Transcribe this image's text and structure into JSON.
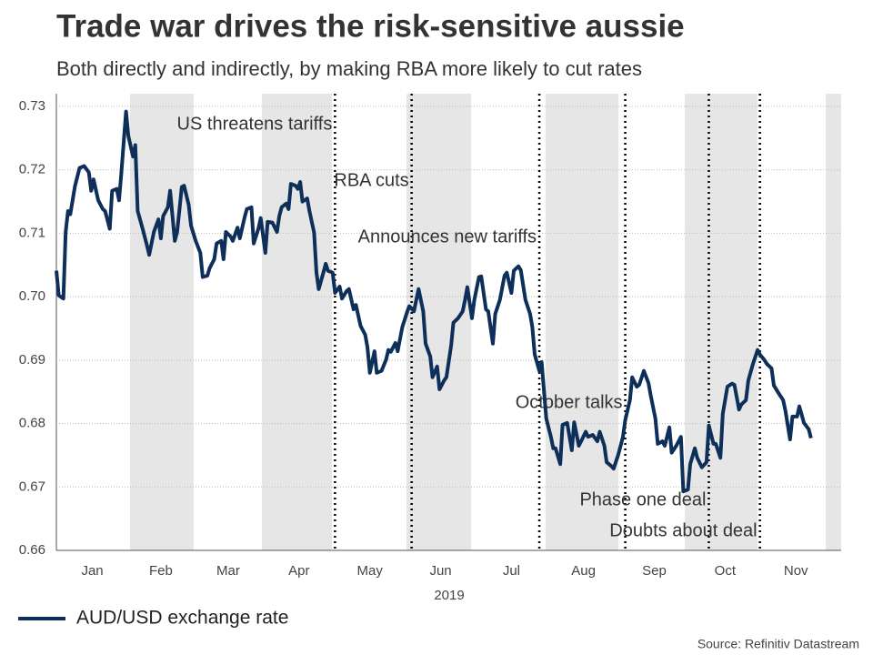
{
  "chart_data": {
    "type": "line",
    "title": "Trade war drives the risk-sensitive aussie",
    "subtitle": "Both directly and indirectly, by making RBA more likely to cut rates",
    "xlabel": "2019",
    "source": "Source: Refinitiv Datastream",
    "xlim": [
      0,
      338
    ],
    "xticks": [
      {
        "value": 15.5,
        "label": "Jan"
      },
      {
        "value": 45,
        "label": "Feb"
      },
      {
        "value": 74,
        "label": "Mar"
      },
      {
        "value": 104.5,
        "label": "Apr"
      },
      {
        "value": 135,
        "label": "May"
      },
      {
        "value": 165.5,
        "label": "Jun"
      },
      {
        "value": 196,
        "label": "Jul"
      },
      {
        "value": 227,
        "label": "Aug"
      },
      {
        "value": 257.5,
        "label": "Sep"
      },
      {
        "value": 288,
        "label": "Oct"
      },
      {
        "value": 318.5,
        "label": "Nov"
      }
    ],
    "ylim": [
      0.66,
      0.73
    ],
    "yticks": [
      {
        "value": 0.66,
        "label": "0.66"
      },
      {
        "value": 0.67,
        "label": "0.67"
      },
      {
        "value": 0.68,
        "label": "0.68"
      },
      {
        "value": 0.69,
        "label": "0.69"
      },
      {
        "value": 0.7,
        "label": "0.70"
      },
      {
        "value": 0.71,
        "label": "0.71"
      },
      {
        "value": 0.72,
        "label": "0.72"
      },
      {
        "value": 0.73,
        "label": "0.73"
      }
    ],
    "grid": true,
    "events": [
      {
        "x": 120,
        "label": "US threatens tariffs"
      },
      {
        "x": 153,
        "label": "RBA cuts"
      },
      {
        "x": 208,
        "label": "Announces new tariffs"
      },
      {
        "x": 245,
        "label": "October talks"
      },
      {
        "x": 281,
        "label": "Phase one deal"
      },
      {
        "x": 303,
        "label": "Doubts about deal"
      }
    ],
    "x": [
      0,
      1,
      3,
      4,
      5,
      6,
      8,
      10,
      12,
      14,
      15,
      16,
      18,
      20,
      21,
      23,
      24,
      26,
      27,
      28,
      30,
      31,
      33,
      34,
      35,
      37,
      39,
      40,
      42,
      44,
      45,
      46,
      48,
      49,
      51,
      52,
      54,
      55,
      57,
      58,
      60,
      62,
      63,
      65,
      66,
      68,
      69,
      71,
      72,
      73,
      75,
      76,
      78,
      79,
      81,
      82,
      84,
      85,
      87,
      88,
      90,
      91,
      93,
      95,
      96,
      97,
      99,
      100,
      101,
      103,
      104,
      105,
      106,
      108,
      109,
      111,
      112,
      113,
      115,
      116,
      117,
      119,
      120,
      122,
      123,
      125,
      126,
      128,
      129,
      131,
      133,
      134,
      135,
      137,
      138,
      140,
      142,
      143,
      144,
      146,
      147,
      149,
      151,
      152,
      154,
      155,
      156,
      158,
      159,
      161,
      162,
      164,
      165,
      167,
      168,
      170,
      171,
      173,
      175,
      176,
      177,
      179,
      180,
      182,
      183,
      185,
      186,
      188,
      189,
      191,
      193,
      194,
      196,
      197,
      199,
      200,
      202,
      204,
      205,
      206,
      208,
      209,
      211,
      213,
      214,
      215,
      217,
      218,
      220,
      222,
      223,
      225,
      226,
      228,
      229,
      231,
      233,
      234,
      236,
      237,
      239,
      240,
      242,
      244,
      245,
      247,
      248,
      250,
      251,
      253,
      255,
      256,
      258,
      259,
      261,
      262,
      264,
      265,
      267,
      269,
      270,
      272,
      273,
      275,
      276,
      278,
      280,
      281,
      283,
      284,
      286,
      287,
      289,
      291,
      292,
      294,
      295,
      297,
      298,
      300,
      302,
      303,
      305,
      306,
      308,
      309,
      311,
      313,
      314,
      316,
      317,
      319,
      320,
      322,
      324,
      325
    ],
    "series": [
      {
        "name": "AUD/USD exchange rate",
        "color": "#0d2f5a",
        "values": [
          0.7041,
          0.7002,
          0.6997,
          0.7102,
          0.7135,
          0.713,
          0.7174,
          0.7203,
          0.7206,
          0.7196,
          0.7167,
          0.7185,
          0.7152,
          0.7138,
          0.7135,
          0.7107,
          0.7167,
          0.717,
          0.7152,
          0.7196,
          0.7292,
          0.7253,
          0.7221,
          0.7239,
          0.7135,
          0.7109,
          0.7081,
          0.7066,
          0.7102,
          0.7122,
          0.7092,
          0.7127,
          0.7141,
          0.7167,
          0.7088,
          0.7102,
          0.7173,
          0.7175,
          0.7145,
          0.7112,
          0.7088,
          0.7069,
          0.7031,
          0.7033,
          0.7045,
          0.7059,
          0.7084,
          0.7088,
          0.7059,
          0.7102,
          0.7095,
          0.7088,
          0.7109,
          0.7092,
          0.7124,
          0.7138,
          0.7141,
          0.7084,
          0.7107,
          0.7124,
          0.7069,
          0.7118,
          0.7117,
          0.7102,
          0.7127,
          0.7141,
          0.7147,
          0.7138,
          0.7178,
          0.7175,
          0.717,
          0.7181,
          0.715,
          0.7155,
          0.7135,
          0.7101,
          0.7038,
          0.7012,
          0.7038,
          0.7052,
          0.7041,
          0.7038,
          0.7006,
          0.7016,
          0.6997,
          0.7009,
          0.7012,
          0.698,
          0.6987,
          0.6954,
          0.694,
          0.692,
          0.688,
          0.6914,
          0.688,
          0.6883,
          0.6901,
          0.6916,
          0.6913,
          0.6927,
          0.6914,
          0.6952,
          0.6975,
          0.6985,
          0.6977,
          0.6995,
          0.7012,
          0.6977,
          0.6926,
          0.6906,
          0.6873,
          0.689,
          0.6854,
          0.6868,
          0.6873,
          0.6923,
          0.6959,
          0.6966,
          0.6977,
          0.6995,
          0.7015,
          0.6966,
          0.6995,
          0.7031,
          0.7032,
          0.698,
          0.6977,
          0.6926,
          0.6973,
          0.6995,
          0.7033,
          0.7038,
          0.7006,
          0.7041,
          0.7048,
          0.7042,
          0.6995,
          0.6973,
          0.6952,
          0.6909,
          0.6883,
          0.6897,
          0.6808,
          0.6779,
          0.6761,
          0.6761,
          0.6736,
          0.6798,
          0.6801,
          0.6758,
          0.6802,
          0.6765,
          0.6772,
          0.6787,
          0.6779,
          0.6782,
          0.6772,
          0.6787,
          0.6765,
          0.6739,
          0.6733,
          0.6729,
          0.6751,
          0.6779,
          0.6805,
          0.6837,
          0.6873,
          0.6858,
          0.6861,
          0.6883,
          0.6864,
          0.6844,
          0.6808,
          0.6768,
          0.6772,
          0.6765,
          0.6794,
          0.6754,
          0.6765,
          0.6779,
          0.6693,
          0.6696,
          0.6736,
          0.6761,
          0.6746,
          0.6731,
          0.6739,
          0.6797,
          0.6768,
          0.6768,
          0.6746,
          0.6815,
          0.6858,
          0.6863,
          0.6861,
          0.6822,
          0.683,
          0.6837,
          0.6868,
          0.6894,
          0.6916,
          0.6909,
          0.69,
          0.6894,
          0.6887,
          0.686,
          0.6848,
          0.6837,
          0.682,
          0.6775,
          0.6811,
          0.6811,
          0.6827,
          0.6801,
          0.6791,
          0.6777
        ]
      }
    ]
  }
}
